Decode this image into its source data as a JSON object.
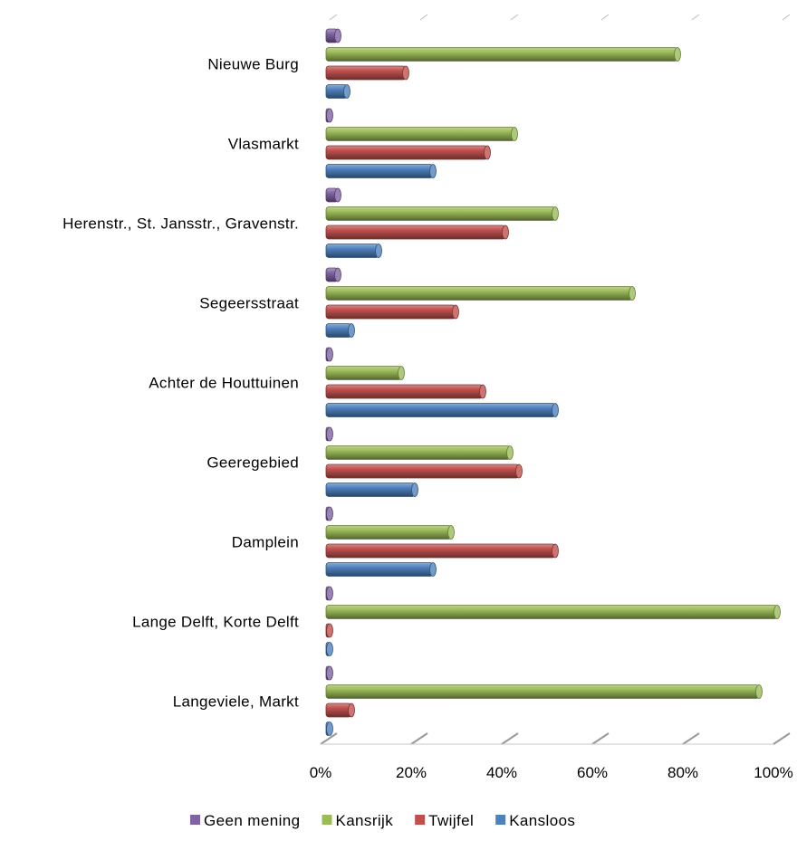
{
  "chart_data": {
    "type": "bar",
    "orientation": "horizontal",
    "style": "3d-cylinder",
    "title": "",
    "xlabel": "",
    "ylabel": "",
    "categories": [
      "Nieuwe Burg",
      "Vlasmarkt",
      "Herenstr., St. Jansstr., Gravenstr.",
      "Segeersstraat",
      "Achter de Houttuinen",
      "Geeregebied",
      "Damplein",
      "Lange Delft, Korte Delft",
      "Langeviele, Markt"
    ],
    "series": [
      {
        "name": "Geen mening",
        "color": "#8064A2",
        "values": [
          3,
          1,
          3,
          3,
          1,
          0,
          0,
          0,
          0
        ]
      },
      {
        "name": "Kansrijk",
        "color": "#9BBB59",
        "values": [
          78,
          42,
          51,
          68,
          17,
          41,
          28,
          100,
          96
        ]
      },
      {
        "name": "Twijfel",
        "color": "#C0504D",
        "values": [
          18,
          36,
          40,
          29,
          35,
          43,
          51,
          1,
          6
        ]
      },
      {
        "name": "Kansloos",
        "color": "#4F81BD",
        "values": [
          5,
          24,
          12,
          6,
          51,
          20,
          24,
          1,
          0
        ]
      }
    ],
    "xlim": [
      0,
      100
    ],
    "ticks": [
      "0%",
      "20%",
      "40%",
      "60%",
      "80%",
      "100%"
    ],
    "grid": true,
    "legend_position": "bottom"
  }
}
